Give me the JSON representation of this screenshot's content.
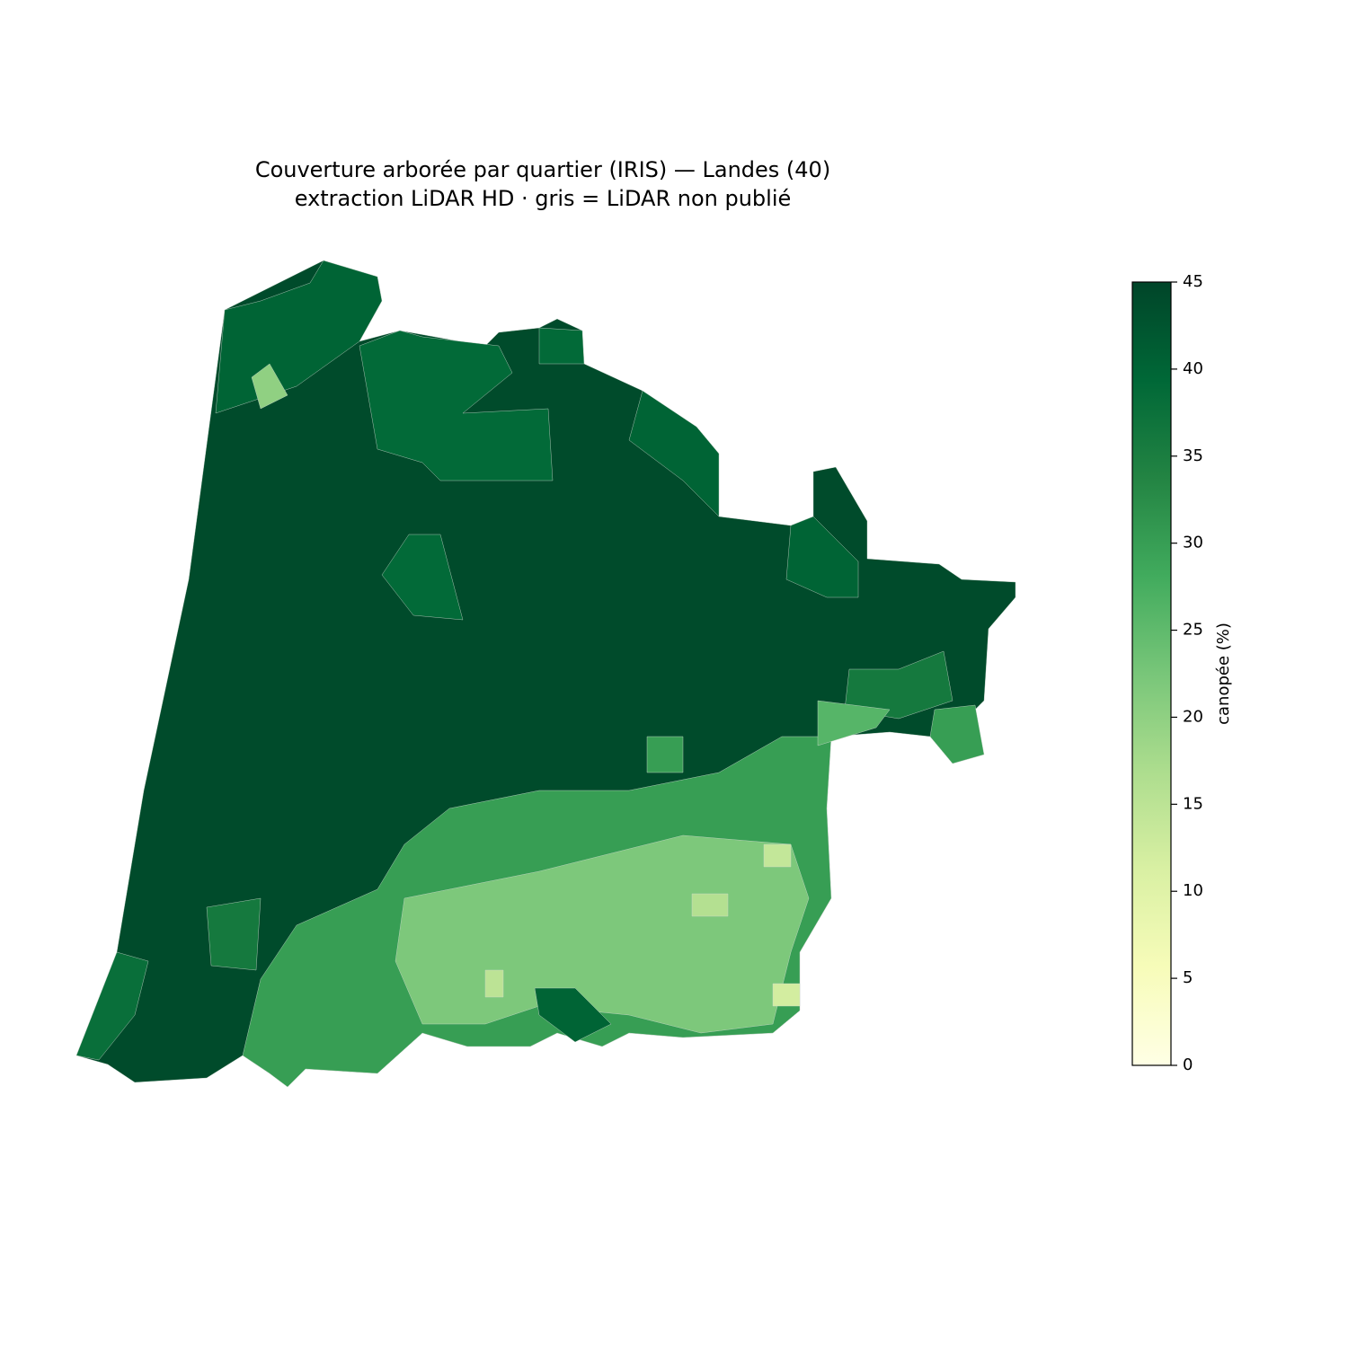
{
  "chart_data": {
    "type": "choropleth",
    "title": "Couverture arborée par quartier (IRIS) — Landes (40)",
    "subtitle": "extraction LiDAR HD · gris = LiDAR non publié",
    "values": [
      44,
      40,
      20,
      39,
      39,
      40,
      40,
      39,
      30,
      22,
      15,
      14,
      12,
      16,
      36,
      40,
      30,
      36,
      26,
      30,
      38
    ],
    "colormap": [
      "#ffffe5",
      "#f7fcb9",
      "#d9f0a3",
      "#addd8e",
      "#78c679",
      "#41ab5d",
      "#238443",
      "#006837",
      "#004529"
    ],
    "colorbar_label": "canopée (%)",
    "clim": [
      0,
      45
    ],
    "cticks": [
      0,
      5,
      10,
      15,
      20,
      25,
      30,
      35,
      40,
      45
    ]
  }
}
